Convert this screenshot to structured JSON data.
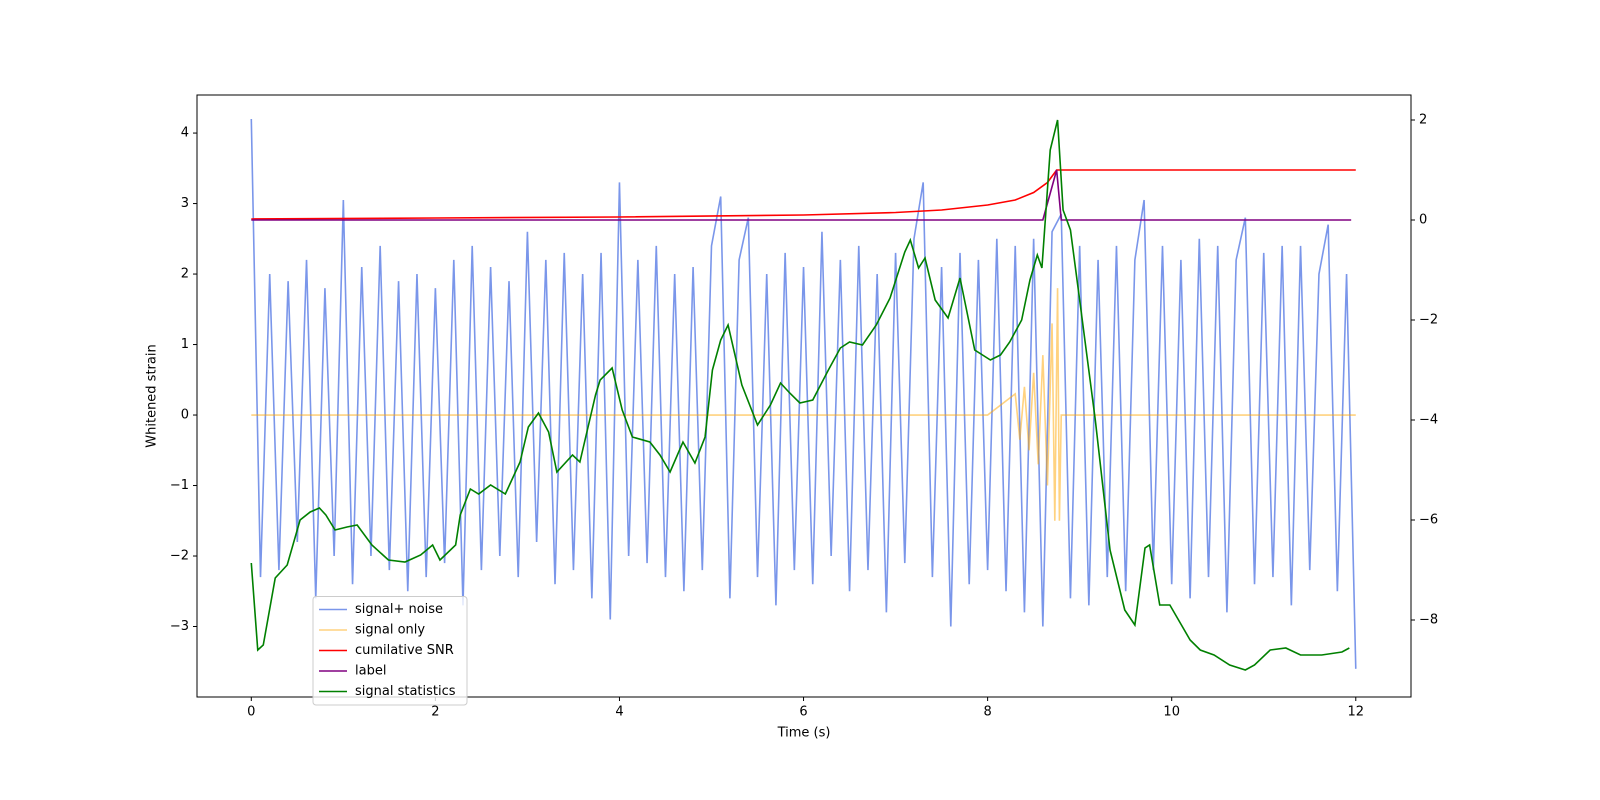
{
  "chart_data": {
    "type": "line",
    "xlabel": "Time (s)",
    "ylabel": "Whitened strain",
    "xlim": [
      -0.59,
      12.6
    ],
    "ylim": [
      -4.0,
      4.54
    ],
    "y2lim": [
      -9.54,
      2.5
    ],
    "xticks": [
      0,
      2,
      4,
      6,
      8,
      10,
      12
    ],
    "yticks": [
      {
        "value": -3,
        "label": "−3"
      },
      {
        "value": -2,
        "label": "−2"
      },
      {
        "value": -1,
        "label": "−1"
      },
      0,
      1,
      2,
      3,
      4
    ],
    "y2ticks": [
      {
        "value": -8,
        "label": "−8"
      },
      {
        "value": -6,
        "label": "−6"
      },
      {
        "value": -4,
        "label": "−4"
      },
      {
        "value": -2,
        "label": "−2"
      },
      0,
      2
    ],
    "legend": "lower left",
    "series": [
      {
        "name": "signal+ noise",
        "color": "#4169e1",
        "alpha": 0.7,
        "x": [
          0,
          0.1,
          0.2,
          0.3,
          0.4,
          0.5,
          0.6,
          0.7,
          0.8,
          0.9,
          1,
          1.1,
          1.2,
          1.3,
          1.4,
          1.5,
          1.6,
          1.7,
          1.8,
          1.9,
          2,
          2.1,
          2.2,
          2.3,
          2.4,
          2.5,
          2.6,
          2.7,
          2.8,
          2.9,
          3,
          3.1,
          3.2,
          3.3,
          3.4,
          3.5,
          3.6,
          3.7,
          3.8,
          3.9,
          4,
          4.1,
          4.2,
          4.3,
          4.4,
          4.5,
          4.6,
          4.7,
          4.8,
          4.9,
          5,
          5.1,
          5.2,
          5.3,
          5.4,
          5.5,
          5.6,
          5.7,
          5.8,
          5.9,
          6,
          6.1,
          6.2,
          6.3,
          6.4,
          6.5,
          6.6,
          6.7,
          6.8,
          6.9,
          7,
          7.1,
          7.2,
          7.3,
          7.4,
          7.5,
          7.6,
          7.7,
          7.8,
          7.9,
          8,
          8.1,
          8.2,
          8.3,
          8.4,
          8.5,
          8.6,
          8.7,
          8.8,
          8.9,
          9,
          9.1,
          9.2,
          9.3,
          9.4,
          9.5,
          9.6,
          9.7,
          9.8,
          9.9,
          10,
          10.1,
          10.2,
          10.3,
          10.4,
          10.5,
          10.6,
          10.7,
          10.8,
          10.9,
          11,
          11.1,
          11.2,
          11.3,
          11.4,
          11.5,
          11.6,
          11.7,
          11.8,
          11.9,
          12
        ],
        "values": [
          4.2,
          -2.3,
          2.0,
          -2.2,
          1.9,
          -1.8,
          2.2,
          -2.6,
          1.8,
          -2.0,
          3.05,
          -2.4,
          2.1,
          -2.0,
          2.4,
          -2.2,
          1.9,
          -2.5,
          2.0,
          -2.3,
          1.8,
          -2.1,
          2.2,
          -2.7,
          2.4,
          -2.2,
          2.1,
          -2.0,
          1.9,
          -2.3,
          2.6,
          -1.8,
          2.2,
          -2.4,
          2.3,
          -2.2,
          2.0,
          -2.6,
          2.3,
          -2.9,
          3.3,
          -2.0,
          2.2,
          -2.1,
          2.4,
          -2.3,
          2.0,
          -2.5,
          2.1,
          -2.2,
          2.4,
          3.1,
          -2.6,
          2.2,
          2.8,
          -2.3,
          2.0,
          -2.7,
          2.3,
          -2.2,
          2.1,
          -2.4,
          2.6,
          -2.0,
          2.2,
          -2.5,
          2.4,
          -2.2,
          2.0,
          -2.8,
          2.3,
          -2.1,
          2.5,
          3.3,
          -2.3,
          2.1,
          -3.0,
          2.3,
          -2.4,
          2.2,
          -2.2,
          2.5,
          -2.5,
          2.4,
          -2.8,
          2.5,
          -3.0,
          2.6,
          2.85,
          -2.6,
          2.4,
          -2.7,
          2.2,
          -2.3,
          2.4,
          -2.5,
          2.2,
          3.05,
          -2.2,
          2.4,
          -2.4,
          2.2,
          -2.6,
          2.5,
          -2.3,
          2.4,
          -2.8,
          2.2,
          2.8,
          -2.4,
          2.3,
          -2.3,
          2.4,
          -2.7,
          2.4,
          -2.2,
          2.0,
          2.7,
          -2.5,
          2.0,
          -3.6
        ]
      },
      {
        "name": "signal only",
        "color": "#ffa500",
        "alpha": 0.5,
        "x": [
          0,
          2,
          4,
          6,
          8,
          8.3,
          8.35,
          8.4,
          8.45,
          8.5,
          8.55,
          8.6,
          8.65,
          8.7,
          8.73,
          8.76,
          8.78,
          8.8,
          12
        ],
        "values": [
          0,
          0,
          0,
          0,
          0,
          0.3,
          -0.35,
          0.4,
          -0.5,
          0.6,
          -0.7,
          0.85,
          -1.0,
          1.3,
          -1.5,
          1.8,
          -1.5,
          0,
          0
        ]
      },
      {
        "name": "cumilative SNR",
        "color": "#ff0000",
        "alpha": 1,
        "axis": "y2",
        "x": [
          0,
          2,
          4,
          6,
          7,
          7.5,
          8,
          8.3,
          8.5,
          8.65,
          8.75,
          12
        ],
        "values": [
          0.02,
          0.04,
          0.06,
          0.1,
          0.15,
          0.2,
          0.3,
          0.4,
          0.55,
          0.75,
          1.0,
          1.0
        ]
      },
      {
        "name": "label",
        "color": "#800080",
        "alpha": 1,
        "axis": "y2",
        "x": [
          0,
          8.6,
          8.75,
          8.8,
          11.95
        ],
        "values": [
          0,
          0,
          1,
          0,
          0
        ]
      },
      {
        "name": "signal statistics",
        "color": "#008000",
        "alpha": 1,
        "axis": "y2",
        "x": [
          0,
          0.07,
          0.13,
          0.26,
          0.39,
          0.53,
          0.64,
          0.74,
          0.81,
          0.91,
          1.04,
          1.15,
          1.31,
          1.49,
          1.67,
          1.84,
          1.97,
          2.05,
          2.22,
          2.27,
          2.38,
          2.47,
          2.6,
          2.76,
          2.92,
          3.01,
          3.12,
          3.23,
          3.32,
          3.49,
          3.57,
          3.74,
          3.79,
          3.92,
          4.03,
          4.14,
          4.33,
          4.44,
          4.55,
          4.69,
          4.82,
          4.93,
          5.01,
          5.1,
          5.18,
          5.33,
          5.5,
          5.64,
          5.75,
          5.85,
          5.96,
          6.1,
          6.27,
          6.4,
          6.5,
          6.64,
          6.79,
          6.94,
          7.1,
          7.16,
          7.25,
          7.32,
          7.43,
          7.57,
          7.7,
          7.86,
          8.03,
          8.14,
          8.24,
          8.37,
          8.46,
          8.54,
          8.59,
          8.68,
          8.76,
          8.82,
          8.9,
          9.0,
          9.17,
          9.33,
          9.49,
          9.6,
          9.71,
          9.76,
          9.87,
          9.98,
          10.2,
          10.31,
          10.46,
          10.63,
          10.8,
          10.9,
          11.07,
          11.24,
          11.4,
          11.63,
          11.85,
          11.93
        ],
        "values": [
          -6.86,
          -8.6,
          -8.5,
          -7.16,
          -6.9,
          -6.0,
          -5.84,
          -5.76,
          -5.9,
          -6.2,
          -6.14,
          -6.1,
          -6.5,
          -6.8,
          -6.84,
          -6.7,
          -6.5,
          -6.8,
          -6.5,
          -5.9,
          -5.38,
          -5.48,
          -5.3,
          -5.48,
          -4.84,
          -4.14,
          -3.86,
          -4.24,
          -5.04,
          -4.7,
          -4.84,
          -3.5,
          -3.2,
          -2.96,
          -3.8,
          -4.34,
          -4.44,
          -4.7,
          -5.04,
          -4.44,
          -4.86,
          -4.34,
          -3.0,
          -2.4,
          -2.1,
          -3.3,
          -4.1,
          -3.7,
          -3.26,
          -3.46,
          -3.66,
          -3.6,
          -3.0,
          -2.56,
          -2.44,
          -2.5,
          -2.1,
          -1.56,
          -0.64,
          -0.4,
          -0.96,
          -0.76,
          -1.6,
          -1.96,
          -1.16,
          -2.6,
          -2.8,
          -2.7,
          -2.44,
          -2.0,
          -1.2,
          -0.7,
          -0.96,
          1.4,
          2.0,
          0.2,
          -0.2,
          -1.6,
          -4.0,
          -6.6,
          -7.8,
          -8.1,
          -6.56,
          -6.5,
          -7.7,
          -7.7,
          -8.4,
          -8.6,
          -8.7,
          -8.9,
          -9.0,
          -8.9,
          -8.6,
          -8.56,
          -8.7,
          -8.7,
          -8.64,
          -8.56
        ]
      }
    ]
  }
}
